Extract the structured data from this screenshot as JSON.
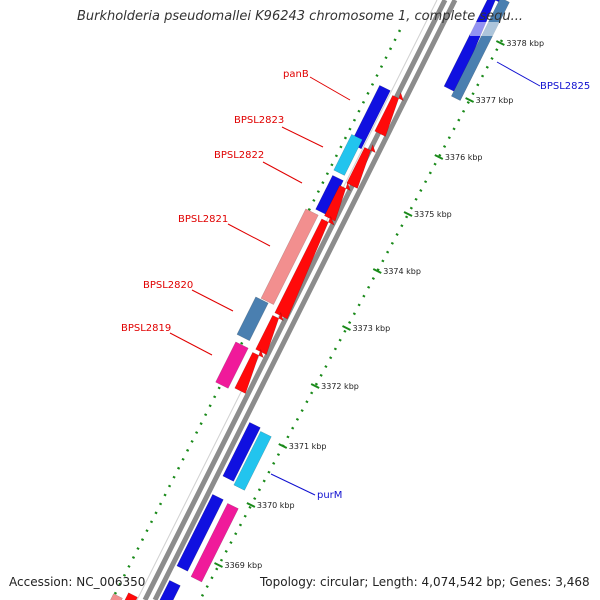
{
  "title": "Burkholderia pseudomallei K96243 chromosome 1, complete sequ...",
  "accession_text": "Accession: NC_006350",
  "summary_text": "Topology: circular; Length: 4,074,542 bp; Genes: 3,468",
  "colors": {
    "backbone": "#8c8c8c",
    "tick": "#1a8a1a",
    "blue": "#1010e0",
    "red": "#ff0a0a",
    "cyan": "#22c4ee",
    "pink": "#f28f8f",
    "steel": "#4a7fb0",
    "magenta": "#f01a9a",
    "label_red": "#e00000",
    "label_blue": "#1010d0"
  },
  "ticks": [
    "3378 kbp",
    "3377 kbp",
    "3376 kbp",
    "3375 kbp",
    "3374 kbp",
    "3373 kbp",
    "3372 kbp",
    "3371 kbp",
    "3370 kbp",
    "3369 kbp"
  ],
  "gene_labels": [
    "panB",
    "BPSL2823",
    "BPSL2822",
    "BPSL2821",
    "BPSL2820",
    "BPSL2819",
    "BPSL2825",
    "purM"
  ]
}
